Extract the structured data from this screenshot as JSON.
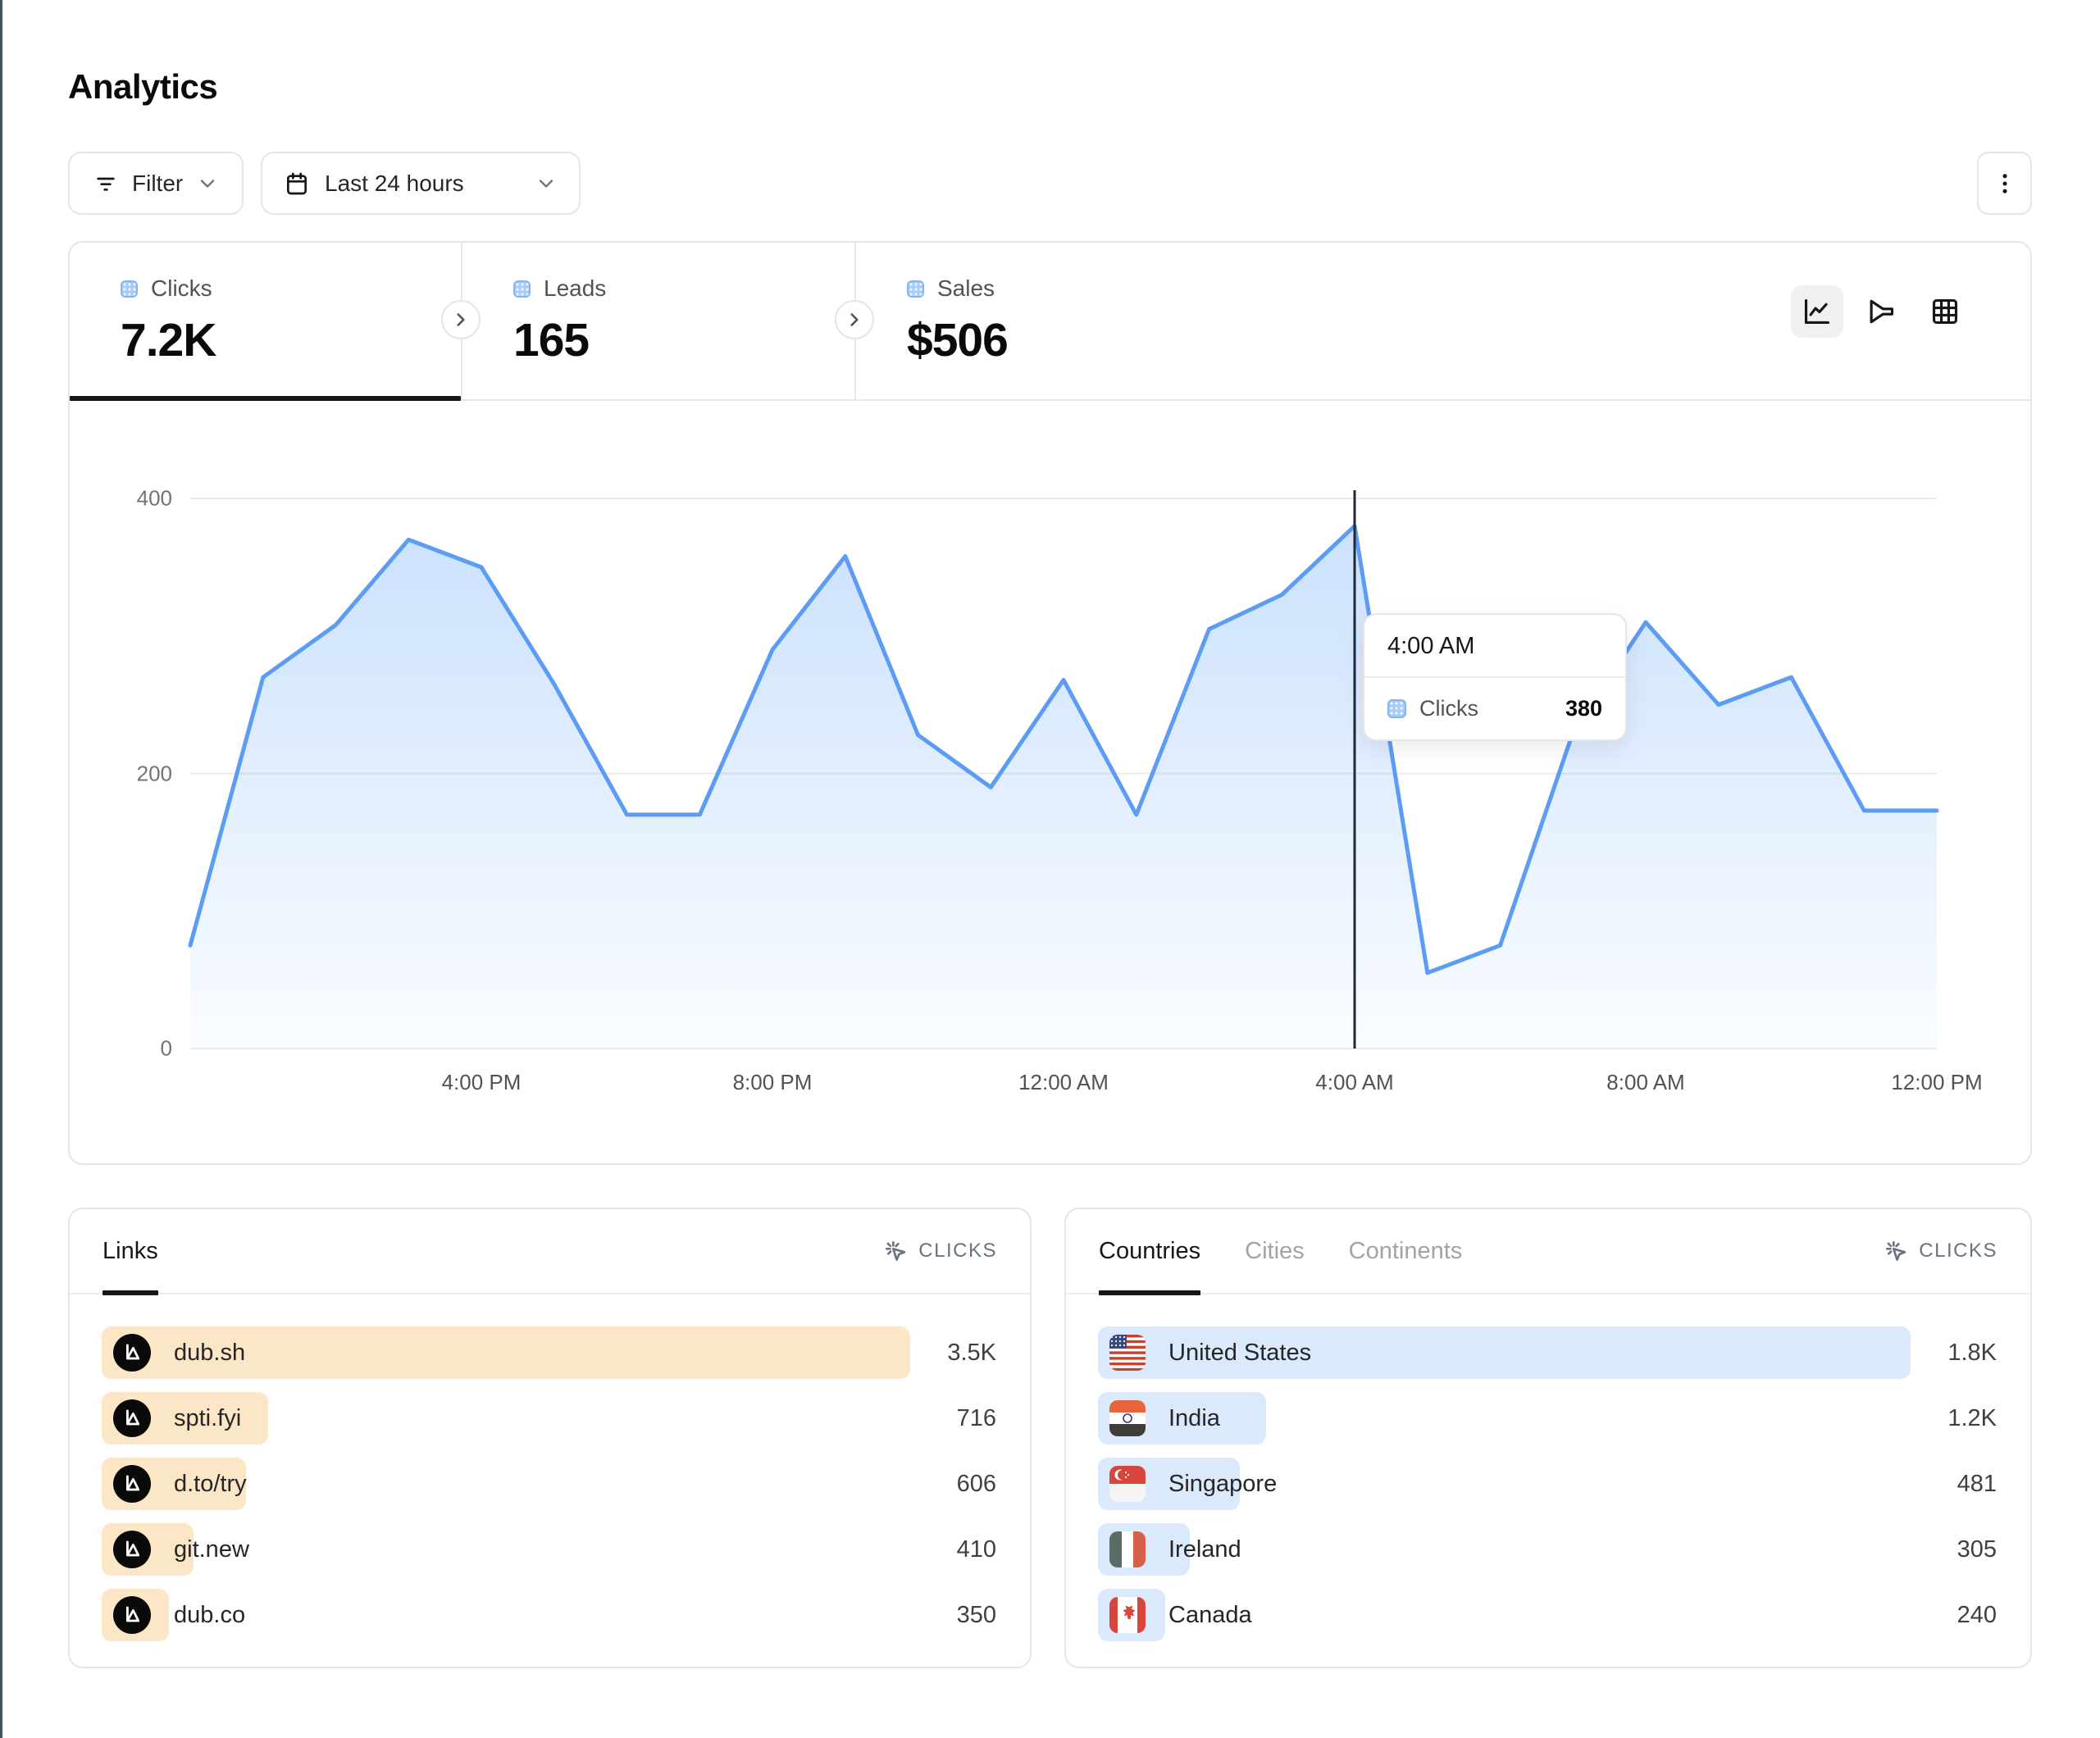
{
  "page": {
    "title": "Analytics"
  },
  "toolbar": {
    "filter_label": "Filter",
    "date_range": "Last 24 hours"
  },
  "stats": {
    "items": [
      {
        "label": "Clicks",
        "value": "7.2K",
        "active": true
      },
      {
        "label": "Leads",
        "value": "165",
        "active": false
      },
      {
        "label": "Sales",
        "value": "$506",
        "active": false
      }
    ]
  },
  "chart_data": {
    "type": "area",
    "series_name": "Clicks",
    "x": [
      "12:00 PM",
      "1:00 PM",
      "2:00 PM",
      "3:00 PM",
      "4:00 PM",
      "5:00 PM",
      "6:00 PM",
      "7:00 PM",
      "8:00 PM",
      "9:00 PM",
      "10:00 PM",
      "11:00 PM",
      "12:00 AM",
      "1:00 AM",
      "2:00 AM",
      "3:00 AM",
      "4:00 AM",
      "5:00 AM",
      "6:00 AM",
      "7:00 AM",
      "8:00 AM",
      "9:00 AM",
      "10:00 AM",
      "11:00 AM",
      "12:00 PM"
    ],
    "values": [
      75,
      270,
      308,
      370,
      350,
      265,
      170,
      170,
      290,
      358,
      228,
      190,
      268,
      170,
      305,
      330,
      380,
      55,
      75,
      230,
      310,
      250,
      270,
      173,
      173
    ],
    "x_tick_labels": [
      "4:00 PM",
      "8:00 PM",
      "12:00 AM",
      "4:00 AM",
      "8:00 AM",
      "12:00 PM"
    ],
    "x_tick_indices": [
      4,
      8,
      12,
      16,
      20,
      24
    ],
    "y_ticks": [
      0,
      200,
      400
    ],
    "ylim": [
      0,
      400
    ],
    "grid": "horizontal",
    "line_color": "#5d9cf5",
    "tooltip": {
      "time": "4:00 AM",
      "series": "Clicks",
      "value": "380",
      "index": 16
    }
  },
  "links_panel": {
    "tab": "Links",
    "metric": "CLICKS",
    "rows": [
      {
        "label": "dub.sh",
        "value": "3.5K",
        "bar_pct": 100
      },
      {
        "label": "spti.fyi",
        "value": "716",
        "bar_pct": 20.6
      },
      {
        "label": "d.to/try",
        "value": "606",
        "bar_pct": 17.9
      },
      {
        "label": "git.new",
        "value": "410",
        "bar_pct": 11.4
      },
      {
        "label": "dub.co",
        "value": "350",
        "bar_pct": 8.3
      }
    ]
  },
  "geo_panel": {
    "tabs": [
      "Countries",
      "Cities",
      "Continents"
    ],
    "active_tab": "Countries",
    "metric": "CLICKS",
    "rows": [
      {
        "label": "United States",
        "flag": "us",
        "value": "1.8K",
        "bar_pct": 100
      },
      {
        "label": "India",
        "flag": "in",
        "value": "1.2K",
        "bar_pct": 20.7
      },
      {
        "label": "Singapore",
        "flag": "sg",
        "value": "481",
        "bar_pct": 17.5
      },
      {
        "label": "Ireland",
        "flag": "ie",
        "value": "305",
        "bar_pct": 11.3
      },
      {
        "label": "Canada",
        "flag": "ca",
        "value": "240",
        "bar_pct": 8.3
      }
    ]
  },
  "colors": {
    "accent_blue": "#5d9cf5",
    "link_bar": "#fbe6c6",
    "geo_bar": "#dbe9fd",
    "crosshair": "#1f2937"
  }
}
